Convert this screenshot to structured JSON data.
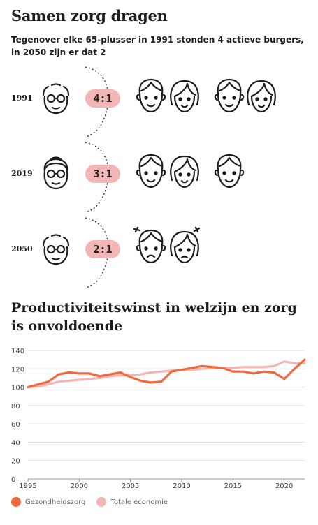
{
  "title": "Samen zorg dragen",
  "subtitle": "Tegenover elke 65-plusser in 1991 stonden 4 actieve burgers, in 2050 zijn er dat 2",
  "rows": [
    {
      "year": "1991",
      "ratio": "4:1",
      "workers": [
        "man",
        "woman",
        "man",
        "woman"
      ]
    },
    {
      "year": "2019",
      "ratio": "3:1",
      "workers": [
        "man",
        "woman",
        "man"
      ]
    },
    {
      "year": "2050",
      "ratio": "2:1",
      "workers": [
        "man-sad",
        "woman-sad"
      ]
    }
  ],
  "colors": {
    "accent": "#ee6a3e",
    "accent_light": "#f3b6b6",
    "ink": "#1e1e1e",
    "grid": "#dddddd"
  },
  "chart_data": {
    "type": "line",
    "title": "Productiviteitswinst in welzijn en zorg is onvoldoende",
    "x": [
      1995,
      1996,
      1997,
      1998,
      1999,
      2000,
      2001,
      2002,
      2003,
      2004,
      2005,
      2006,
      2007,
      2008,
      2009,
      2010,
      2011,
      2012,
      2013,
      2014,
      2015,
      2016,
      2017,
      2018,
      2019,
      2020,
      2021,
      2022
    ],
    "series": [
      {
        "name": "Gezondheidszorg",
        "color": "#ee6a3e",
        "values": [
          100,
          103,
          106,
          114,
          116,
          115,
          115,
          112,
          114,
          116,
          111,
          107,
          105,
          106,
          117,
          119,
          121,
          123,
          122,
          121,
          117,
          117,
          115,
          117,
          116,
          109,
          120,
          130
        ]
      },
      {
        "name": "Totale economie",
        "color": "#f3b6b6",
        "values": [
          100,
          101,
          103,
          106,
          107,
          108,
          109,
          110,
          112,
          113,
          113,
          114,
          116,
          117,
          118,
          119,
          119,
          120,
          121,
          121,
          121,
          122,
          122,
          122,
          123,
          128,
          126,
          126
        ]
      }
    ],
    "xticks": [
      "1995",
      "2000",
      "2005",
      "2010",
      "2015",
      "2020"
    ],
    "yticks": [
      "0",
      "20",
      "40",
      "60",
      "80",
      "100",
      "120",
      "140"
    ],
    "ylim": [
      0,
      140
    ],
    "xlim": [
      1995,
      2022
    ],
    "grid": true,
    "legend": "bottom-left"
  }
}
